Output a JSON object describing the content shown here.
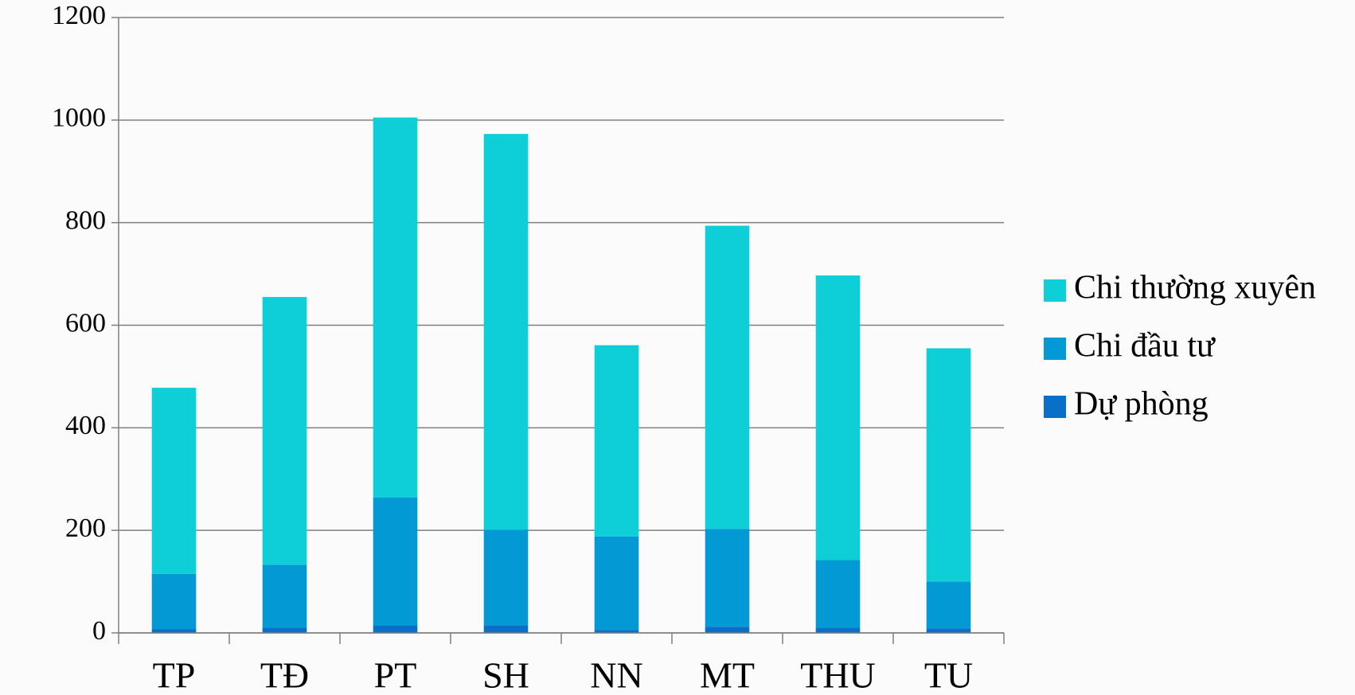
{
  "chart_data": {
    "type": "stacked_bar",
    "categories": [
      "TP",
      "TĐ",
      "PT",
      "SH",
      "NN",
      "MT",
      "THU",
      "TU"
    ],
    "series": [
      {
        "name": "Chi thường xuyên",
        "color": "#0ecfd8",
        "values": [
          363,
          522,
          741,
          772,
          373,
          591,
          555,
          455
        ]
      },
      {
        "name": "Chi đầu tư",
        "color": "#0399d4",
        "values": [
          108,
          123,
          250,
          186,
          182,
          191,
          132,
          91
        ]
      },
      {
        "name": "Dự phòng",
        "color": "#0a6fc9",
        "values": [
          7,
          10,
          14,
          15,
          6,
          12,
          10,
          9
        ]
      }
    ],
    "ylim": [
      0,
      1200
    ],
    "yticks": [
      0,
      200,
      400,
      600,
      800,
      1000,
      1200
    ],
    "grid": true,
    "legend": "right"
  }
}
